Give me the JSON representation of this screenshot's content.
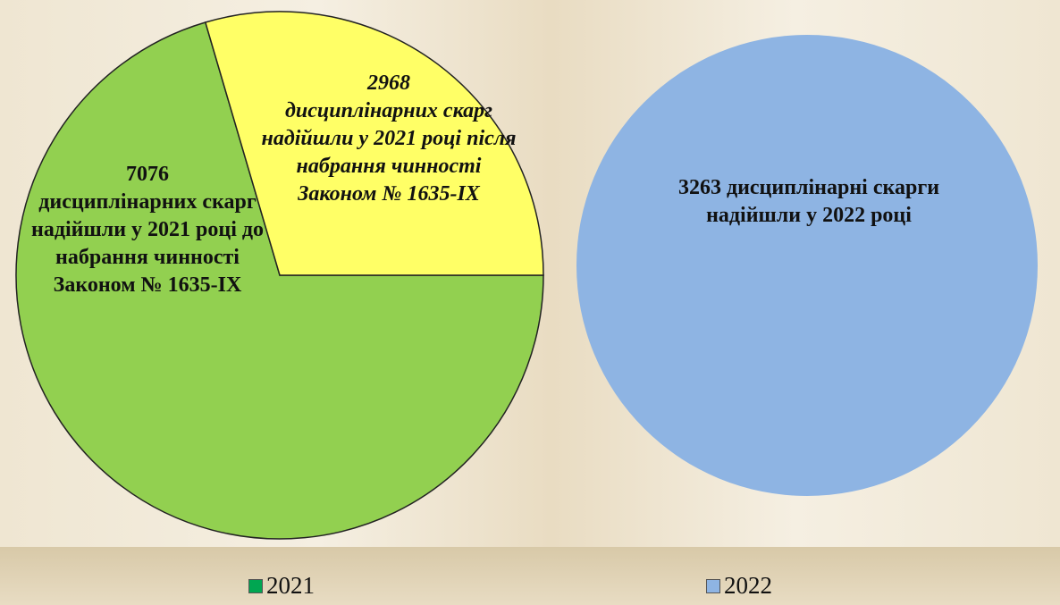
{
  "chart_data": [
    {
      "type": "pie",
      "name": "2021",
      "legend_color": "#00a651",
      "categories": [
        "дисциплінарних скарг надійшли у 2021 році до набрання чинності Законом № 1635-IX",
        "дисциплінарних скарг надійшли у 2021 році після набрання чинності Законом № 1635-IX"
      ],
      "values": [
        7076,
        2968
      ],
      "value_labels": [
        "7076",
        "2968"
      ],
      "colors": [
        "#92d050",
        "#ffff66"
      ]
    },
    {
      "type": "pie",
      "name": "2022",
      "legend_color": "#8eb4e3",
      "categories": [
        "дисциплінарні скарги надійшли у 2022 році"
      ],
      "values": [
        3263
      ],
      "value_labels": [
        "3263"
      ],
      "colors": [
        "#8eb4e3"
      ]
    }
  ]
}
